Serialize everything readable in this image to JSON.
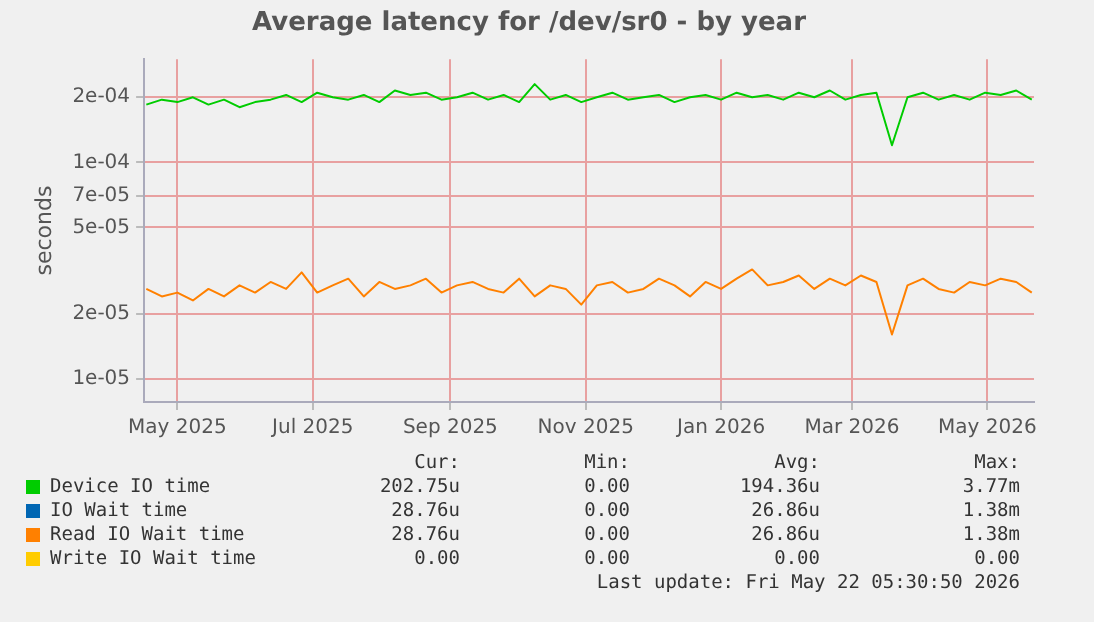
{
  "chart_data": {
    "type": "line",
    "title": "Average latency for /dev/sr0 - by year",
    "ylabel": "seconds",
    "log": "y",
    "grid": true,
    "legend": "bottom",
    "marker": "none",
    "line_style": "solid",
    "x": [
      "2025-04-17",
      "2025-04-24",
      "2025-05-01",
      "2025-05-08",
      "2025-05-15",
      "2025-05-22",
      "2025-05-29",
      "2025-06-05",
      "2025-06-12",
      "2025-06-19",
      "2025-06-26",
      "2025-07-03",
      "2025-07-10",
      "2025-07-17",
      "2025-07-24",
      "2025-07-31",
      "2025-08-07",
      "2025-08-14",
      "2025-08-21",
      "2025-08-28",
      "2025-09-04",
      "2025-09-11",
      "2025-09-18",
      "2025-09-25",
      "2025-10-02",
      "2025-10-09",
      "2025-10-16",
      "2025-10-23",
      "2025-10-30",
      "2025-11-06",
      "2025-11-13",
      "2025-11-20",
      "2025-11-27",
      "2025-12-04",
      "2025-12-11",
      "2025-12-18",
      "2025-12-25",
      "2026-01-01",
      "2026-01-08",
      "2026-01-15",
      "2026-01-22",
      "2026-01-29",
      "2026-02-05",
      "2026-02-12",
      "2026-02-19",
      "2026-02-26",
      "2026-03-05",
      "2026-03-12",
      "2026-03-19",
      "2026-03-26",
      "2026-04-02",
      "2026-04-09",
      "2026-04-16",
      "2026-04-23",
      "2026-04-30",
      "2026-05-07",
      "2026-05-14",
      "2026-05-21"
    ],
    "xlim": [
      "2025-04-16",
      "2026-05-22"
    ],
    "xticks": [
      {
        "value": "2025-05-01",
        "label": "May 2025"
      },
      {
        "value": "2025-07-01",
        "label": "Jul 2025"
      },
      {
        "value": "2025-09-01",
        "label": "Sep 2025"
      },
      {
        "value": "2025-11-01",
        "label": "Nov 2025"
      },
      {
        "value": "2026-01-01",
        "label": "Jan 2026"
      },
      {
        "value": "2026-03-01",
        "label": "Mar 2026"
      },
      {
        "value": "2026-05-01",
        "label": "May 2026"
      }
    ],
    "ylim": [
      7.8e-06,
      0.0003
    ],
    "yticks": [
      {
        "value": 1e-05,
        "label": "1e-05"
      },
      {
        "value": 2e-05,
        "label": "2e-05"
      },
      {
        "value": 5e-05,
        "label": "5e-05"
      },
      {
        "value": 7e-05,
        "label": "7e-05"
      },
      {
        "value": 0.0001,
        "label": "1e-04"
      },
      {
        "value": 0.0002,
        "label": "2e-04"
      }
    ],
    "series": [
      {
        "name": "Device IO time",
        "color": "#00cc00",
        "values": [
          0.000185,
          0.000195,
          0.00019,
          0.0002,
          0.000185,
          0.000195,
          0.00018,
          0.00019,
          0.000195,
          0.000205,
          0.00019,
          0.00021,
          0.0002,
          0.000195,
          0.000205,
          0.00019,
          0.000215,
          0.000205,
          0.00021,
          0.000195,
          0.0002,
          0.00021,
          0.000195,
          0.000205,
          0.00019,
          0.00023,
          0.000195,
          0.000205,
          0.00019,
          0.0002,
          0.00021,
          0.000195,
          0.0002,
          0.000205,
          0.00019,
          0.0002,
          0.000205,
          0.000195,
          0.00021,
          0.0002,
          0.000205,
          0.000195,
          0.00021,
          0.0002,
          0.000215,
          0.000195,
          0.000205,
          0.00021,
          0.00012,
          0.0002,
          0.00021,
          0.000195,
          0.000205,
          0.000195,
          0.00021,
          0.000205,
          0.000215,
          0.000195
        ]
      },
      {
        "name": "IO Wait time",
        "color": "#0066b3",
        "values": [
          null,
          null,
          null,
          null,
          null,
          null,
          null,
          null,
          null,
          null,
          null,
          null,
          null,
          null,
          null,
          null,
          null,
          null,
          null,
          null,
          null,
          null,
          null,
          null,
          null,
          null,
          null,
          null,
          null,
          null,
          null,
          null,
          null,
          null,
          null,
          null,
          null,
          null,
          null,
          null,
          null,
          null,
          null,
          null,
          null,
          null,
          null,
          null,
          null,
          null,
          null,
          null,
          null,
          null,
          null,
          null,
          null,
          null
        ]
      },
      {
        "name": "Read IO Wait time",
        "color": "#ff8000",
        "values": [
          2.6e-05,
          2.4e-05,
          2.5e-05,
          2.3e-05,
          2.6e-05,
          2.4e-05,
          2.7e-05,
          2.5e-05,
          2.8e-05,
          2.6e-05,
          3.1e-05,
          2.5e-05,
          2.7e-05,
          2.9e-05,
          2.4e-05,
          2.8e-05,
          2.6e-05,
          2.7e-05,
          2.9e-05,
          2.5e-05,
          2.7e-05,
          2.8e-05,
          2.6e-05,
          2.5e-05,
          2.9e-05,
          2.4e-05,
          2.7e-05,
          2.6e-05,
          2.2e-05,
          2.7e-05,
          2.8e-05,
          2.5e-05,
          2.6e-05,
          2.9e-05,
          2.7e-05,
          2.4e-05,
          2.8e-05,
          2.6e-05,
          2.9e-05,
          3.2e-05,
          2.7e-05,
          2.8e-05,
          3e-05,
          2.6e-05,
          2.9e-05,
          2.7e-05,
          3e-05,
          2.8e-05,
          1.6e-05,
          2.7e-05,
          2.9e-05,
          2.6e-05,
          2.5e-05,
          2.8e-05,
          2.7e-05,
          2.9e-05,
          2.8e-05,
          2.5e-05
        ]
      },
      {
        "name": "Write IO Wait time",
        "color": "#ffcc00",
        "values": [
          null,
          null,
          null,
          null,
          null,
          null,
          null,
          null,
          null,
          null,
          null,
          null,
          null,
          null,
          null,
          null,
          null,
          null,
          null,
          null,
          null,
          null,
          null,
          null,
          null,
          null,
          null,
          null,
          null,
          null,
          null,
          null,
          null,
          null,
          null,
          null,
          null,
          null,
          null,
          null,
          null,
          null,
          null,
          null,
          null,
          null,
          null,
          null,
          null,
          null,
          null,
          null,
          null,
          null,
          null,
          null,
          null,
          null
        ]
      }
    ],
    "annotations": [
      "Cur:",
      "Min:",
      "Avg:",
      "Max:",
      "202.75u",
      "0.00",
      "194.36u",
      "3.77m",
      "28.76u",
      "0.00",
      "26.86u",
      "1.38m",
      "28.76u",
      "0.00",
      "26.86u",
      "1.38m",
      "0.00",
      "0.00",
      "0.00",
      "0.00",
      "Last update: Fri May 22 05:30:50 2026"
    ]
  }
}
